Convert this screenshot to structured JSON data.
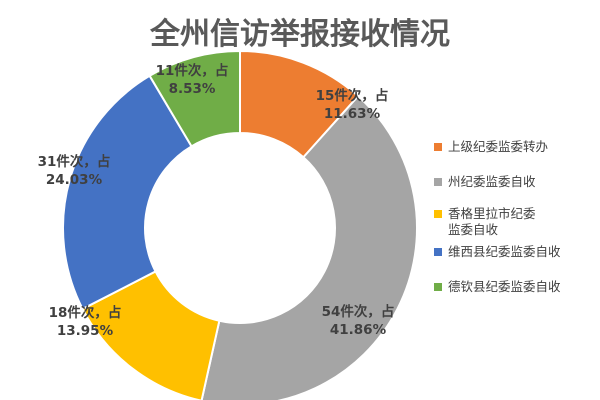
{
  "chart_data": {
    "type": "pie",
    "donut": true,
    "title": "全州信访举报接收情况",
    "slices": [
      {
        "name": "上级纪委监委转办",
        "legend_lines": [
          "上级纪委监委转办"
        ],
        "value": 15,
        "label_lines": [
          "15件次，占",
          "11.63%"
        ],
        "color": "#ED7D31"
      },
      {
        "name": "州纪委监委自收",
        "legend_lines": [
          "州纪委监委自收"
        ],
        "value": 54,
        "label_lines": [
          "54件次，占",
          "41.86%"
        ],
        "color": "#A5A5A5"
      },
      {
        "name": "香格里拉市纪委监委自收",
        "legend_lines": [
          "香格里拉市纪委",
          "监委自收"
        ],
        "value": 18,
        "label_lines": [
          "18件次，占",
          "13.95%"
        ],
        "color": "#FFC000"
      },
      {
        "name": "维西县纪委监委自收",
        "legend_lines": [
          "维西县纪委监委自收"
        ],
        "value": 31,
        "label_lines": [
          "31件次，占",
          "24.03%"
        ],
        "color": "#4472C4"
      },
      {
        "name": "德钦县纪委监委自收",
        "legend_lines": [
          "德钦县纪委监委自收"
        ],
        "value": 11,
        "label_lines": [
          "11件次，占",
          "8.53%"
        ],
        "color": "#70AD47"
      }
    ],
    "legend_position": "right"
  }
}
